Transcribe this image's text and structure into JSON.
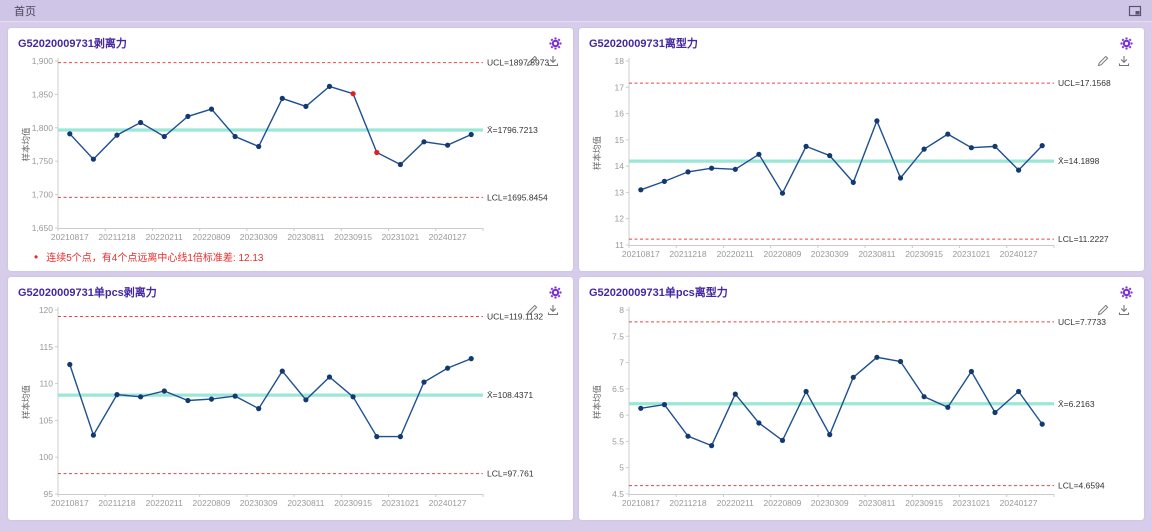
{
  "header": {
    "tab_label": "首页"
  },
  "colors": {
    "page_bg": "#d7cdeb",
    "tabbar_bg": "#cfc5e6",
    "card_bg": "#ffffff",
    "title_text": "#4527a0",
    "gear_accent": "#7b2fd9",
    "series_line": "#1e4f90",
    "series_marker": "#123a70",
    "violation_point": "#e02020",
    "control_limit_line": "#e64545",
    "center_line": "#8ae3d1",
    "limit_label_text": "#333333",
    "axis_line": "#cccccc",
    "tick_text": "#999999",
    "annotation_text": "#e82c2c"
  },
  "chart_data": [
    {
      "type": "line",
      "title": "G52020009731剥离力",
      "ylabel": "样本均值",
      "ylim": [
        1650,
        1900
      ],
      "grid": false,
      "legend_position": "none",
      "y_ticks": [
        [
          1900,
          "1,900"
        ],
        [
          1850,
          "1,850"
        ],
        [
          1800,
          "1,800"
        ],
        [
          1750,
          "1,750"
        ],
        [
          1700,
          "1,700"
        ],
        [
          1650,
          "1,650"
        ]
      ],
      "x_labels": [
        "20210817",
        "20211218",
        "20220211",
        "20220809",
        "20230309",
        "20230811",
        "20230915",
        "20231021",
        "20240127"
      ],
      "values": [
        1791,
        1753,
        1789,
        1808,
        1787,
        1817,
        1828,
        1787,
        1772,
        1844,
        1832,
        1862,
        1851,
        1763,
        1745,
        1779,
        1774,
        1790
      ],
      "red_points": [
        12,
        13
      ],
      "ucl": 1897.5973,
      "ucl_label": "UCL=1897.5973",
      "cl": 1796.7213,
      "cl_label": "X̄=1796.7213",
      "lcl": 1695.8454,
      "lcl_label": "LCL=1695.8454",
      "bullet": "•",
      "annotation": "连续5个点，有4个点远离中心线1倍标准差: 12.13"
    },
    {
      "type": "line",
      "title": "G52020009731离型力",
      "ylabel": "样本均值",
      "ylim": [
        11,
        18
      ],
      "grid": false,
      "legend_position": "none",
      "y_ticks": [
        [
          18,
          "18"
        ],
        [
          17,
          "17"
        ],
        [
          16,
          "16"
        ],
        [
          15,
          "15"
        ],
        [
          14,
          "14"
        ],
        [
          13,
          "13"
        ],
        [
          12,
          "12"
        ],
        [
          11,
          "11"
        ]
      ],
      "x_labels": [
        "20210817",
        "20211218",
        "20220211",
        "20220809",
        "20230309",
        "20230811",
        "20230915",
        "20231021",
        "20240127"
      ],
      "values": [
        13.1,
        13.42,
        13.78,
        13.92,
        13.88,
        14.45,
        12.97,
        14.75,
        14.4,
        13.38,
        15.72,
        13.55,
        14.65,
        15.22,
        14.7,
        14.75,
        13.85,
        14.78
      ],
      "red_points": [],
      "ucl": 17.1568,
      "ucl_label": "UCL=17.1568",
      "cl": 14.1898,
      "cl_label": "X̄=14.1898",
      "lcl": 11.2227,
      "lcl_label": "LCL=11.2227"
    },
    {
      "type": "line",
      "title": "G52020009731单pcs剥离力",
      "ylabel": "样本均值",
      "ylim": [
        95,
        120
      ],
      "grid": false,
      "legend_position": "none",
      "y_ticks": [
        [
          120,
          "120"
        ],
        [
          115,
          "115"
        ],
        [
          110,
          "110"
        ],
        [
          105,
          "105"
        ],
        [
          100,
          "100"
        ],
        [
          95,
          "95"
        ]
      ],
      "x_labels": [
        "20210817",
        "20211218",
        "20220211",
        "20220809",
        "20230309",
        "20230811",
        "20230915",
        "20231021",
        "20240127"
      ],
      "values": [
        112.6,
        103.0,
        108.5,
        108.2,
        109.0,
        107.7,
        107.9,
        108.3,
        106.6,
        111.7,
        107.8,
        110.9,
        108.2,
        102.8,
        102.8,
        110.2,
        112.1,
        113.4
      ],
      "red_points": [],
      "ucl": 119.1132,
      "ucl_label": "UCL=119.1132",
      "cl": 108.4371,
      "cl_label": "X̄=108.4371",
      "lcl": 97.761,
      "lcl_label": "LCL=97.761"
    },
    {
      "type": "line",
      "title": "G52020009731单pcs离型力",
      "ylabel": "样本均值",
      "ylim": [
        4.5,
        8
      ],
      "grid": false,
      "legend_position": "none",
      "y_ticks": [
        [
          8,
          "8"
        ],
        [
          7.5,
          "7.5"
        ],
        [
          7,
          "7"
        ],
        [
          6.5,
          "6.5"
        ],
        [
          6,
          "6"
        ],
        [
          5.5,
          "5.5"
        ],
        [
          5,
          "5"
        ],
        [
          4.5,
          "4.5"
        ]
      ],
      "x_labels": [
        "20210817",
        "20211218",
        "20220211",
        "20220809",
        "20230309",
        "20230811",
        "20230915",
        "20231021",
        "20240127"
      ],
      "values": [
        6.13,
        6.2,
        5.6,
        5.42,
        6.4,
        5.85,
        5.52,
        6.45,
        5.63,
        6.72,
        7.1,
        7.02,
        6.35,
        6.15,
        6.83,
        6.05,
        6.45,
        5.83
      ],
      "red_points": [],
      "ucl": 7.7733,
      "ucl_label": "UCL=7.7733",
      "cl": 6.2163,
      "cl_label": "X̄=6.2163",
      "lcl": 4.6594,
      "lcl_label": "LCL=4.6594"
    }
  ]
}
